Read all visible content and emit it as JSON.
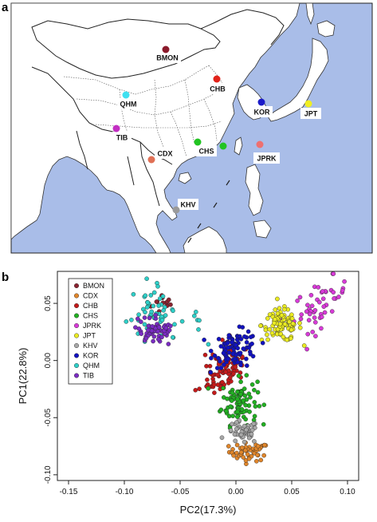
{
  "panel_a": {
    "label": "a",
    "sea_color": "#a9bde8",
    "land_color": "#ffffff",
    "sites": [
      {
        "code": "BMON",
        "color": "#8b1a2b"
      },
      {
        "code": "CHB",
        "color": "#e2231a"
      },
      {
        "code": "QHM",
        "color": "#3fe0f0"
      },
      {
        "code": "KOR",
        "color": "#1a1ac8"
      },
      {
        "code": "JPT",
        "color": "#f0ee22"
      },
      {
        "code": "TIB",
        "color": "#c22ec2"
      },
      {
        "code": "CHS",
        "color": "#22c422"
      },
      {
        "code": "CDX",
        "color": "#e07055"
      },
      {
        "code": "JPRK",
        "color": "#ee7070"
      },
      {
        "code": "KHV",
        "color": "#9a9a9a"
      }
    ]
  },
  "panel_b": {
    "label": "b",
    "chart_data": {
      "type": "scatter",
      "title": "",
      "xlabel": "PC2(17.3%)",
      "ylabel": "PC1(22.8%)",
      "xlim": [
        -0.16,
        0.11
      ],
      "ylim": [
        -0.105,
        0.078
      ],
      "xticks": [
        -0.15,
        -0.1,
        -0.05,
        0.0,
        0.05,
        0.1
      ],
      "xtick_labels": [
        "-0.15",
        "-0.10",
        "-0.05",
        "0.00",
        "0.05",
        "0.10"
      ],
      "yticks": [
        -0.1,
        -0.05,
        0.0,
        0.05
      ],
      "ytick_labels": [
        "-0.10",
        "-0.05",
        "0.00",
        "0.05"
      ],
      "legend_position": "top-left",
      "series": [
        {
          "name": "BMON",
          "color": "#8b2330",
          "cluster": {
            "cx": -0.064,
            "cy": 0.05,
            "sx": 0.006,
            "sy": 0.005,
            "n": 12
          }
        },
        {
          "name": "CDX",
          "color": "#e0862b",
          "cluster": {
            "cx": 0.012,
            "cy": -0.08,
            "sx": 0.009,
            "sy": 0.004,
            "n": 50
          }
        },
        {
          "name": "CHB",
          "color": "#c41a1a",
          "cluster": {
            "cx": -0.012,
            "cy": -0.008,
            "sx": 0.009,
            "sy": 0.012,
            "n": 90
          }
        },
        {
          "name": "CHS",
          "color": "#22b022",
          "cluster": {
            "cx": 0.003,
            "cy": -0.036,
            "sx": 0.008,
            "sy": 0.01,
            "n": 90
          }
        },
        {
          "name": "JPRK",
          "color": "#d83ad8",
          "cluster": {
            "cx": 0.076,
            "cy": 0.05,
            "sx": 0.012,
            "sy": 0.01,
            "n": 50
          }
        },
        {
          "name": "JPT",
          "color": "#eaea22",
          "cluster": {
            "cx": 0.041,
            "cy": 0.031,
            "sx": 0.009,
            "sy": 0.007,
            "n": 90
          }
        },
        {
          "name": "KHV",
          "color": "#a8a8a8",
          "cluster": {
            "cx": 0.006,
            "cy": -0.063,
            "sx": 0.007,
            "sy": 0.005,
            "n": 45
          }
        },
        {
          "name": "KOR",
          "color": "#1212c0",
          "cluster": {
            "cx": 0.0,
            "cy": 0.01,
            "sx": 0.01,
            "sy": 0.008,
            "n": 90
          }
        },
        {
          "name": "QHM",
          "color": "#2ecfc8",
          "cluster": {
            "cx": -0.076,
            "cy": 0.042,
            "sx": 0.01,
            "sy": 0.011,
            "n": 60
          }
        },
        {
          "name": "TIB",
          "color": "#7a2cc2",
          "cluster": {
            "cx": -0.072,
            "cy": 0.027,
            "sx": 0.01,
            "sy": 0.006,
            "n": 60
          }
        }
      ]
    }
  }
}
